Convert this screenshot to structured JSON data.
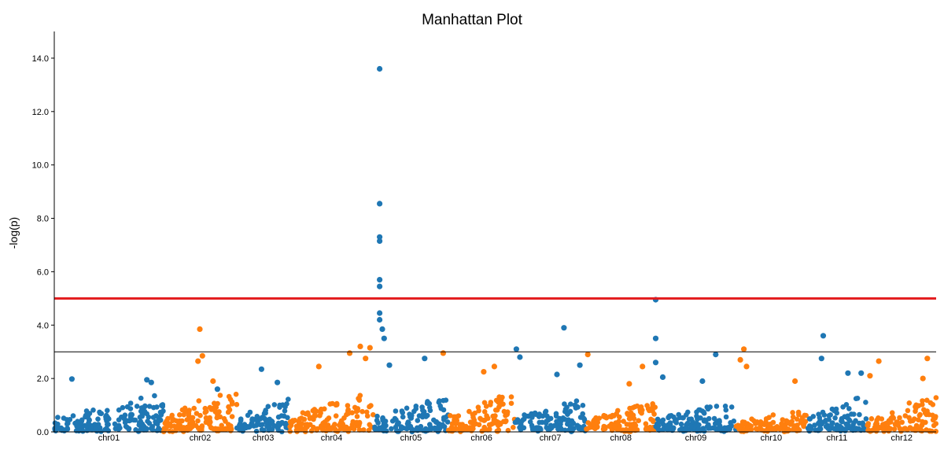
{
  "chart_data": {
    "type": "scatter",
    "title": "Manhattan Plot",
    "xlabel": "",
    "ylabel": "-log(p)",
    "ylim": [
      0,
      15
    ],
    "yticks": [
      "0.0",
      "2.0",
      "4.0",
      "6.0",
      "8.0",
      "10.0",
      "12.0",
      "14.0"
    ],
    "grid": false,
    "colors": [
      "#1f77b4",
      "#ff7f0e"
    ],
    "thresholds": [
      {
        "y": 5.0,
        "color": "#e31a1c"
      },
      {
        "y": 3.0,
        "color": "#000000"
      }
    ],
    "chromosomes": [
      {
        "name": "chr01",
        "start": 0.0,
        "end": 0.124,
        "base": 1.0,
        "peaks": [
          {
            "x": 0.02,
            "y": 1.98
          },
          {
            "x": 0.105,
            "y": 1.95
          },
          {
            "x": 0.11,
            "y": 1.85
          }
        ]
      },
      {
        "name": "chr02",
        "start": 0.124,
        "end": 0.207,
        "base": 1.15,
        "peaks": [
          {
            "x": 0.165,
            "y": 3.85
          },
          {
            "x": 0.168,
            "y": 2.85
          },
          {
            "x": 0.163,
            "y": 2.65
          },
          {
            "x": 0.18,
            "y": 1.9
          }
        ]
      },
      {
        "name": "chr03",
        "start": 0.207,
        "end": 0.267,
        "base": 0.9,
        "peaks": [
          {
            "x": 0.235,
            "y": 2.35
          },
          {
            "x": 0.253,
            "y": 1.85
          },
          {
            "x": 0.185,
            "y": 1.6
          }
        ]
      },
      {
        "name": "chr04",
        "start": 0.267,
        "end": 0.362,
        "base": 1.1,
        "peaks": [
          {
            "x": 0.347,
            "y": 3.2
          },
          {
            "x": 0.358,
            "y": 3.15
          },
          {
            "x": 0.3,
            "y": 2.45
          },
          {
            "x": 0.335,
            "y": 2.95
          },
          {
            "x": 0.353,
            "y": 2.75
          }
        ]
      },
      {
        "name": "chr05",
        "start": 0.362,
        "end": 0.447,
        "base": 0.95,
        "peaks": [
          {
            "x": 0.369,
            "y": 13.6
          },
          {
            "x": 0.369,
            "y": 8.55
          },
          {
            "x": 0.369,
            "y": 7.3
          },
          {
            "x": 0.369,
            "y": 7.15
          },
          {
            "x": 0.369,
            "y": 5.7
          },
          {
            "x": 0.369,
            "y": 5.45
          },
          {
            "x": 0.369,
            "y": 4.45
          },
          {
            "x": 0.369,
            "y": 4.2
          },
          {
            "x": 0.372,
            "y": 3.85
          },
          {
            "x": 0.374,
            "y": 3.5
          },
          {
            "x": 0.38,
            "y": 2.5
          },
          {
            "x": 0.42,
            "y": 2.75
          }
        ]
      },
      {
        "name": "chr06",
        "start": 0.447,
        "end": 0.522,
        "base": 1.05,
        "peaks": [
          {
            "x": 0.441,
            "y": 2.95
          },
          {
            "x": 0.499,
            "y": 2.45
          },
          {
            "x": 0.487,
            "y": 2.25
          }
        ]
      },
      {
        "name": "chr07",
        "start": 0.522,
        "end": 0.603,
        "base": 0.9,
        "peaks": [
          {
            "x": 0.524,
            "y": 3.1
          },
          {
            "x": 0.528,
            "y": 2.8
          },
          {
            "x": 0.578,
            "y": 3.9
          },
          {
            "x": 0.596,
            "y": 2.5
          },
          {
            "x": 0.57,
            "y": 2.15
          }
        ]
      },
      {
        "name": "chr08",
        "start": 0.603,
        "end": 0.682,
        "base": 0.8,
        "peaks": [
          {
            "x": 0.605,
            "y": 2.9
          },
          {
            "x": 0.667,
            "y": 2.45
          },
          {
            "x": 0.652,
            "y": 1.8
          }
        ]
      },
      {
        "name": "chr09",
        "start": 0.682,
        "end": 0.773,
        "base": 0.85,
        "peaks": [
          {
            "x": 0.682,
            "y": 4.95
          },
          {
            "x": 0.682,
            "y": 3.5
          },
          {
            "x": 0.682,
            "y": 2.6
          },
          {
            "x": 0.69,
            "y": 2.05
          },
          {
            "x": 0.75,
            "y": 2.9
          },
          {
            "x": 0.735,
            "y": 1.9
          }
        ]
      },
      {
        "name": "chr10",
        "start": 0.773,
        "end": 0.853,
        "base": 0.55,
        "peaks": [
          {
            "x": 0.782,
            "y": 3.1
          },
          {
            "x": 0.778,
            "y": 2.7
          },
          {
            "x": 0.785,
            "y": 2.45
          },
          {
            "x": 0.84,
            "y": 1.9
          }
        ]
      },
      {
        "name": "chr11",
        "start": 0.853,
        "end": 0.922,
        "base": 1.0,
        "peaks": [
          {
            "x": 0.872,
            "y": 3.6
          },
          {
            "x": 0.87,
            "y": 2.75
          },
          {
            "x": 0.9,
            "y": 2.2
          },
          {
            "x": 0.915,
            "y": 2.2
          }
        ]
      },
      {
        "name": "chr12",
        "start": 0.922,
        "end": 1.0,
        "base": 0.95,
        "peaks": [
          {
            "x": 0.935,
            "y": 2.65
          },
          {
            "x": 0.99,
            "y": 2.75
          },
          {
            "x": 0.985,
            "y": 2.0
          },
          {
            "x": 0.925,
            "y": 2.1
          }
        ]
      }
    ]
  }
}
